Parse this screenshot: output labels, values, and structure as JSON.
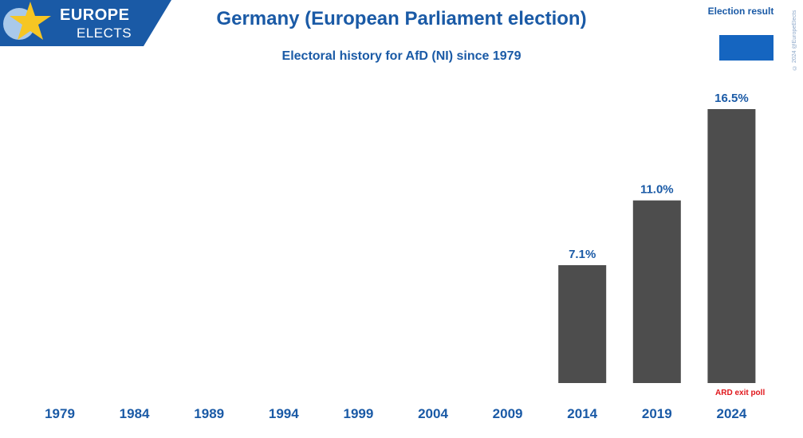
{
  "header": {
    "logo_line1": "EUROPE",
    "logo_line2": "ELECTS",
    "title": "Germany (European Parliament election)",
    "subtitle": "Electoral history for AfD (NI) since 1979",
    "legend_label": "Election result",
    "credit": "© 2024 @EuropeElects"
  },
  "colors": {
    "bar": "#4d4d4d",
    "text_blue": "#1a5aa6",
    "legend": "#1565c0",
    "note": "#e0161b"
  },
  "chart_data": {
    "type": "bar",
    "title": "Germany (European Parliament election)",
    "subtitle": "Electoral history for AfD (NI) since 1979",
    "categories": [
      "1979",
      "1984",
      "1989",
      "1994",
      "1999",
      "2004",
      "2009",
      "2014",
      "2019",
      "2024"
    ],
    "values": [
      null,
      null,
      null,
      null,
      null,
      null,
      null,
      7.1,
      11.0,
      16.5
    ],
    "data_labels": [
      "",
      "",
      "",
      "",
      "",
      "",
      "",
      "7.1%",
      "11.0%",
      "16.5%"
    ],
    "series": [
      {
        "name": "Election result",
        "values": [
          null,
          null,
          null,
          null,
          null,
          null,
          null,
          7.1,
          11.0,
          16.5
        ]
      }
    ],
    "xlabel": "",
    "ylabel": "",
    "ylim": [
      0,
      16.5
    ],
    "grid": false,
    "legend_position": "top-right",
    "annotations": [
      "ARD exit poll"
    ]
  }
}
